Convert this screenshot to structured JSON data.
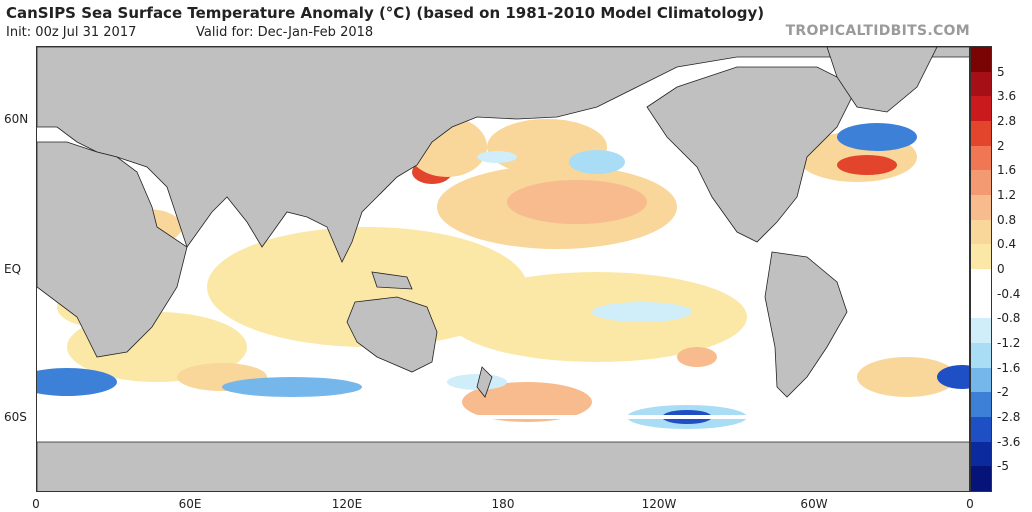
{
  "header": {
    "title": "CanSIPS Sea Surface Temperature Anomaly (°C) (based on 1981-2010 Model Climatology)",
    "init": "Init: 00z Jul 31 2017",
    "valid": "Valid for: Dec-Jan-Feb 2018",
    "brand": "TROPICALTIDBITS.COM"
  },
  "axes": {
    "lat_labels": [
      "60N",
      "EQ",
      "60S"
    ],
    "lon_labels": [
      "0",
      "60E",
      "120E",
      "180",
      "120W",
      "60W",
      "0"
    ]
  },
  "colorbar": {
    "ticks": [
      "5",
      "3.6",
      "2.8",
      "2",
      "1.6",
      "1.2",
      "0.8",
      "0.4",
      "0",
      "-0.4",
      "-0.8",
      "-1.2",
      "-1.6",
      "-2",
      "-2.8",
      "-3.6",
      "-5"
    ],
    "colors": [
      "#7a0403",
      "#a50f15",
      "#cb1a1e",
      "#e2452b",
      "#f07654",
      "#f49a72",
      "#f7bb8e",
      "#f9d699",
      "#fbe8a6",
      "#ffffff",
      "#ffffff",
      "#cfeefa",
      "#a9dcf5",
      "#75b7ea",
      "#3d80d8",
      "#1f4fc4",
      "#0b2a9e",
      "#061378"
    ]
  },
  "map": {
    "land_color": "#c0c0c0",
    "border_color": "#222222",
    "ocean_neutral": "#ffffff"
  }
}
